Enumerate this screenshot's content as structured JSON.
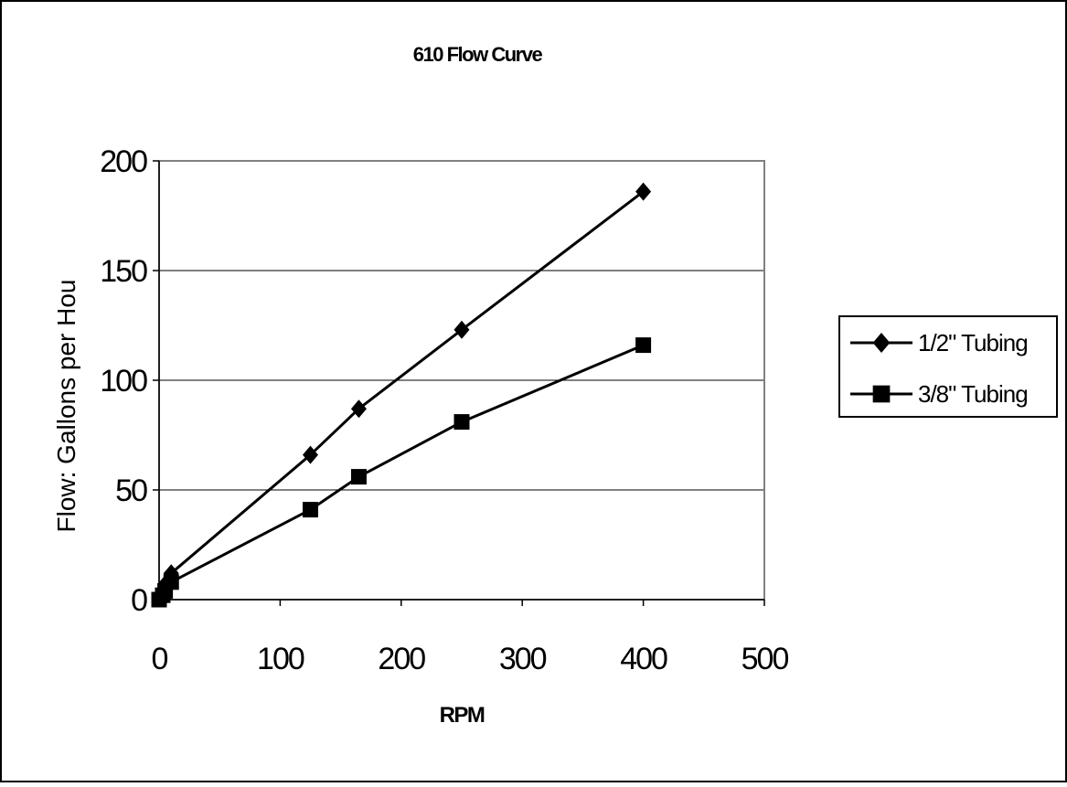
{
  "chart_data": {
    "type": "line",
    "title": "610 Flow Curve",
    "xlabel": "RPM",
    "ylabel": "Flow: Gallons per Hou",
    "xlim": [
      0,
      500
    ],
    "ylim": [
      0,
      200
    ],
    "xticks": [
      0,
      100,
      200,
      300,
      400,
      500
    ],
    "yticks": [
      0,
      50,
      100,
      150,
      200
    ],
    "grid": "horizontal",
    "legend_position": "right",
    "series": [
      {
        "name": "1/2\" Tubing",
        "marker": "diamond",
        "x": [
          0,
          3,
          5,
          10,
          125,
          165,
          250,
          400
        ],
        "y": [
          1,
          3,
          7,
          12,
          66,
          87,
          123,
          186
        ]
      },
      {
        "name": "3/8\" Tubing",
        "marker": "square",
        "x": [
          0,
          3,
          5,
          10,
          125,
          165,
          250,
          400
        ],
        "y": [
          0,
          2,
          4,
          8,
          41,
          56,
          81,
          116
        ]
      }
    ]
  },
  "colors": {
    "line": "#000000",
    "plot_border": "#808080",
    "grid": "#000000",
    "background": "#ffffff"
  }
}
